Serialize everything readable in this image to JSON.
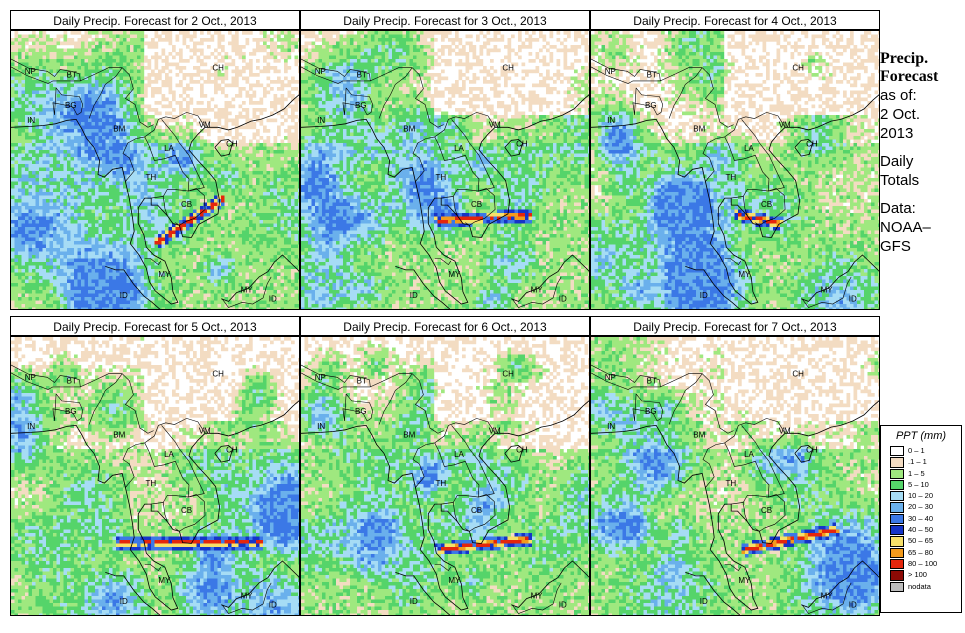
{
  "panels": [
    {
      "title": "Daily Precip. Forecast for  2 Oct., 2013",
      "seed": 11,
      "band_lon": 105.5,
      "band_lat": 11.0,
      "band_len": 5,
      "band_angle": 0.55
    },
    {
      "title": "Daily Precip. Forecast for  3 Oct., 2013",
      "seed": 23,
      "band_lon": 106.0,
      "band_lat": 11.3,
      "band_len": 6,
      "band_angle": 0.05
    },
    {
      "title": "Daily Precip. Forecast for  4 Oct., 2013",
      "seed": 37,
      "band_lon": 104.0,
      "band_lat": 11.2,
      "band_len": 3,
      "band_angle": -0.2
    },
    {
      "title": "Daily Precip. Forecast for  5 Oct., 2013",
      "seed": 41,
      "band_lon": 105.5,
      "band_lat": 9.2,
      "band_len": 9,
      "band_angle": 0.0
    },
    {
      "title": "Daily Precip. Forecast for  6 Oct., 2013",
      "seed": 53,
      "band_lon": 106.0,
      "band_lat": 9.0,
      "band_len": 6,
      "band_angle": 0.1
    },
    {
      "title": "Daily Precip. Forecast for  7 Oct., 2013",
      "seed": 67,
      "band_lon": 108.0,
      "band_lat": 9.5,
      "band_len": 6,
      "band_angle": 0.2
    }
  ],
  "country_labels": [
    {
      "code": "CH",
      "lon": 108.5,
      "lat": 28.0
    },
    {
      "code": "NP",
      "lon": 85.2,
      "lat": 27.6
    },
    {
      "code": "BT",
      "lon": 90.4,
      "lat": 27.2
    },
    {
      "code": "BG",
      "lon": 90.2,
      "lat": 23.7
    },
    {
      "code": "IN",
      "lon": 85.5,
      "lat": 22.0
    },
    {
      "code": "BM",
      "lon": 96.2,
      "lat": 21.0
    },
    {
      "code": "VM",
      "lon": 106.8,
      "lat": 21.5
    },
    {
      "code": "LA",
      "lon": 102.5,
      "lat": 18.8
    },
    {
      "code": "CH",
      "lon": 110.2,
      "lat": 19.3
    },
    {
      "code": "TH",
      "lon": 100.2,
      "lat": 15.5
    },
    {
      "code": "CB",
      "lon": 104.6,
      "lat": 12.4
    },
    {
      "code": "MY",
      "lon": 101.8,
      "lat": 4.4
    },
    {
      "code": "ID",
      "lon": 97.0,
      "lat": 2.0
    },
    {
      "code": "MY",
      "lon": 112.0,
      "lat": 2.6
    },
    {
      "code": "ID",
      "lon": 115.5,
      "lat": 1.6
    }
  ],
  "info": {
    "heading1": "Precip.",
    "heading2": "Forecast",
    "asof": "as of:",
    "date1": "2 Oct.",
    "date2": "2013",
    "daily1": "Daily",
    "daily2": "Totals",
    "data1": "Data:",
    "data2": "NOAA–",
    "data3": "GFS"
  },
  "legend": {
    "title": "PPT (mm)",
    "items": [
      {
        "label": "0 – 1",
        "color": "#ffffff"
      },
      {
        "label": ".1 – 1",
        "color": "#f3dcc2"
      },
      {
        "label": "1 – 5",
        "color": "#9fe87f"
      },
      {
        "label": "5 – 10",
        "color": "#55d46a"
      },
      {
        "label": "10 – 20",
        "color": "#a6dcf5"
      },
      {
        "label": "20 – 30",
        "color": "#6ab0ec"
      },
      {
        "label": "30 – 40",
        "color": "#3b78e6"
      },
      {
        "label": "40 – 50",
        "color": "#1534c8"
      },
      {
        "label": "50 – 65",
        "color": "#f7e06a"
      },
      {
        "label": "65 – 80",
        "color": "#f39a1c"
      },
      {
        "label": "80 – 100",
        "color": "#e4260c"
      },
      {
        "label": "> 100",
        "color": "#8c0a05"
      },
      {
        "label": "nodata",
        "color": "#bdbdbd"
      }
    ]
  }
}
